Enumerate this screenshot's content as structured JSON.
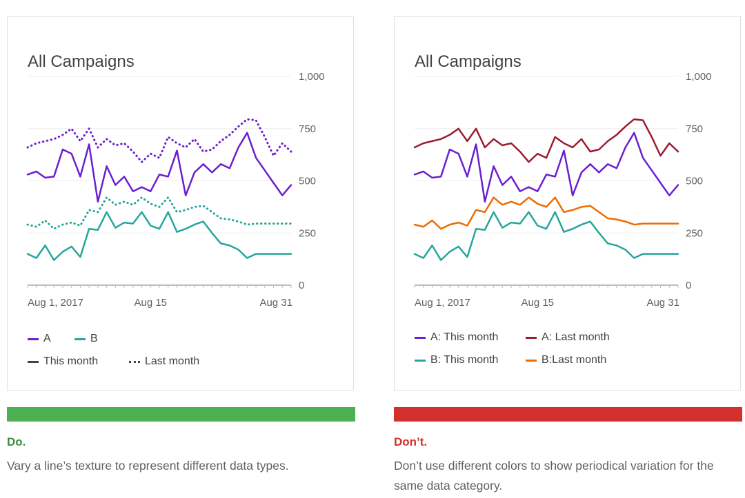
{
  "do_panel": {
    "card_title": "All Campaigns",
    "verdict": "Do.",
    "verdict_color": "#388e3c",
    "bar_color": "#4caf50",
    "description": "Vary a line’s texture to represent different data types.",
    "legend": {
      "a_label": "A",
      "b_label": "B",
      "this_month_label": "This month",
      "last_month_label": "Last month"
    }
  },
  "dont_panel": {
    "card_title": "All Campaigns",
    "verdict": "Don’t.",
    "verdict_color": "#d32f2f",
    "bar_color": "#d32f2f",
    "description": "Don’t use different colors to show periodical variation for the same data category.",
    "legend": {
      "a_this_label": "A: This month",
      "a_last_label": "A: Last month",
      "b_this_label": "B: This month",
      "b_last_label": "B:Last month"
    }
  },
  "chart_data": [
    {
      "type": "line",
      "title": "All Campaigns",
      "x_tick_labels": [
        "Aug 1, 2017",
        "Aug 15",
        "Aug 31"
      ],
      "y_tick_labels": [
        "0",
        "250",
        "500",
        "750",
        "1,000"
      ],
      "ylim": [
        0,
        1000
      ],
      "grid": true,
      "legend_position": "bottom",
      "x": [
        1,
        2,
        3,
        4,
        5,
        6,
        7,
        8,
        9,
        10,
        11,
        12,
        13,
        14,
        15,
        16,
        17,
        18,
        19,
        20,
        21,
        22,
        23,
        24,
        25,
        26,
        27,
        28,
        29,
        30,
        31
      ],
      "series": [
        {
          "name": "A",
          "style": "solid",
          "color": "#6a1fd0",
          "values": [
            530,
            545,
            515,
            520,
            650,
            630,
            520,
            675,
            400,
            570,
            480,
            520,
            450,
            470,
            450,
            530,
            520,
            645,
            430,
            540,
            580,
            540,
            580,
            560,
            660,
            730,
            610,
            550,
            490,
            430,
            480
          ]
        },
        {
          "name": "A",
          "style": "dotted",
          "color": "#6a1fd0",
          "values": [
            660,
            680,
            690,
            700,
            720,
            750,
            690,
            750,
            660,
            700,
            670,
            680,
            640,
            590,
            630,
            610,
            710,
            680,
            660,
            700,
            640,
            650,
            690,
            720,
            760,
            795,
            790,
            710,
            620,
            680,
            640
          ]
        },
        {
          "name": "B",
          "style": "solid",
          "color": "#26a69a",
          "values": [
            150,
            130,
            190,
            120,
            160,
            185,
            135,
            270,
            265,
            350,
            275,
            300,
            295,
            350,
            285,
            270,
            350,
            255,
            270,
            290,
            305,
            250,
            200,
            190,
            170,
            130,
            150,
            150,
            150,
            150,
            150
          ]
        },
        {
          "name": "B",
          "style": "dotted",
          "color": "#26a69a",
          "values": [
            290,
            280,
            310,
            270,
            290,
            300,
            285,
            360,
            350,
            420,
            385,
            400,
            385,
            420,
            390,
            375,
            420,
            350,
            360,
            375,
            380,
            350,
            320,
            315,
            305,
            290,
            295,
            295,
            295,
            295,
            295
          ]
        }
      ]
    },
    {
      "type": "line",
      "title": "All Campaigns",
      "x_tick_labels": [
        "Aug 1, 2017",
        "Aug 15",
        "Aug 31"
      ],
      "y_tick_labels": [
        "0",
        "250",
        "500",
        "750",
        "1,000"
      ],
      "ylim": [
        0,
        1000
      ],
      "grid": true,
      "legend_position": "bottom",
      "x": [
        1,
        2,
        3,
        4,
        5,
        6,
        7,
        8,
        9,
        10,
        11,
        12,
        13,
        14,
        15,
        16,
        17,
        18,
        19,
        20,
        21,
        22,
        23,
        24,
        25,
        26,
        27,
        28,
        29,
        30,
        31
      ],
      "series": [
        {
          "name": "A: This month",
          "color": "#6a1fd0",
          "values": [
            530,
            545,
            515,
            520,
            650,
            630,
            520,
            675,
            400,
            570,
            480,
            520,
            450,
            470,
            450,
            530,
            520,
            645,
            430,
            540,
            580,
            540,
            580,
            560,
            660,
            730,
            610,
            550,
            490,
            430,
            480
          ]
        },
        {
          "name": "A: Last month",
          "color": "#9b1b30",
          "values": [
            660,
            680,
            690,
            700,
            720,
            750,
            690,
            750,
            660,
            700,
            670,
            680,
            640,
            590,
            630,
            610,
            710,
            680,
            660,
            700,
            640,
            650,
            690,
            720,
            760,
            795,
            790,
            710,
            620,
            680,
            640
          ]
        },
        {
          "name": "B: This month",
          "color": "#26a69a",
          "values": [
            150,
            130,
            190,
            120,
            160,
            185,
            135,
            270,
            265,
            350,
            275,
            300,
            295,
            350,
            285,
            270,
            350,
            255,
            270,
            290,
            305,
            250,
            200,
            190,
            170,
            130,
            150,
            150,
            150,
            150,
            150
          ]
        },
        {
          "name": "B:Last month",
          "color": "#ef6c00",
          "values": [
            290,
            280,
            310,
            270,
            290,
            300,
            285,
            360,
            350,
            420,
            385,
            400,
            385,
            420,
            390,
            375,
            420,
            350,
            360,
            375,
            380,
            350,
            320,
            315,
            305,
            290,
            295,
            295,
            295,
            295,
            295
          ]
        }
      ]
    }
  ]
}
